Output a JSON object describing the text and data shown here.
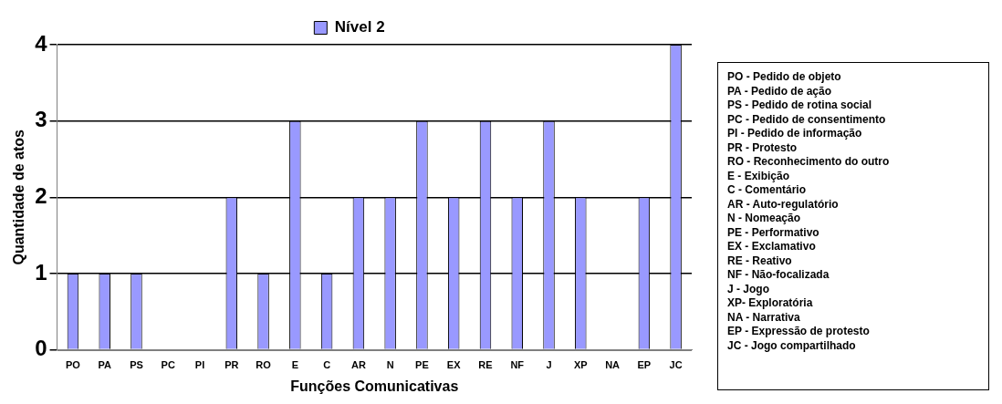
{
  "chart_data": {
    "type": "bar",
    "xlabel": "Funções Comunicativas",
    "ylabel": "Quantidade de atos",
    "categories": [
      "PO",
      "PA",
      "PS",
      "PC",
      "PI",
      "PR",
      "RO",
      "E",
      "C",
      "AR",
      "N",
      "PE",
      "EX",
      "RE",
      "NF",
      "J",
      "XP",
      "NA",
      "EP",
      "JC"
    ],
    "series": [
      {
        "name": "Nível 2",
        "color": "#9999ff",
        "values": [
          1,
          1,
          1,
          0,
          0,
          2,
          1,
          3,
          1,
          2,
          2,
          3,
          2,
          3,
          2,
          3,
          2,
          0,
          2,
          4
        ]
      }
    ],
    "ylim": [
      0,
      4
    ],
    "yticks": [
      0,
      1,
      2,
      3,
      4
    ],
    "grid": "y",
    "legend": "top",
    "annotations": [
      "PO - Pedido de objeto",
      "PA - Pedido de ação",
      "PS - Pedido de rotina social",
      "PC - Pedido de consentimento",
      "PI - Pedido de informação",
      "PR - Protesto",
      "RO - Reconhecimento do outro",
      "E - Exibição",
      "C - Comentário",
      "AR - Auto-regulatório",
      "N - Nomeação",
      "PE - Performativo",
      "EX - Exclamativo",
      "RE - Reativo",
      "NF - Não-focalizada",
      "J - Jogo",
      "XP- Exploratória",
      "NA - Narrativa",
      "EP - Expressão de protesto",
      "JC - Jogo compartilhado"
    ]
  }
}
